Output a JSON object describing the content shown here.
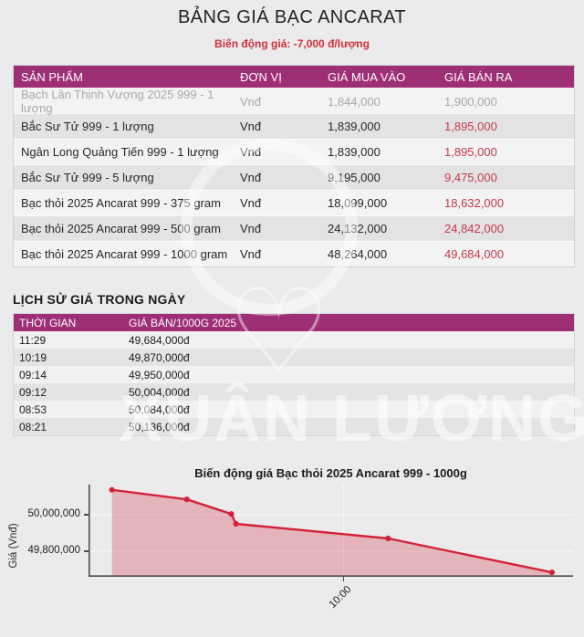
{
  "page": {
    "title": "BẢNG GIÁ BẠC ANCARAT",
    "subtitle": "Biến động giá: -7,000 đ/lượng"
  },
  "colors": {
    "accent_magenta": "#9e2e76",
    "sell_price_red": "#c0394b",
    "subtitle_red": "#d22c3a",
    "chart_line_red": "#d22339",
    "page_background": "#ecebeb"
  },
  "price_table": {
    "columns": [
      "SẢN PHẨM",
      "ĐƠN VỊ",
      "GIÁ MUA VÀO",
      "GIÁ BÁN RA"
    ],
    "rows": [
      {
        "product": "Bạch Lân Thịnh Vượng 2025 999 - 1 lượng",
        "unit": "Vnđ",
        "buy": "1,844,000",
        "sell": "1,900,000",
        "muted": true
      },
      {
        "product": "Bắc Sư Tử 999 - 1 lượng",
        "unit": "Vnđ",
        "buy": "1,839,000",
        "sell": "1,895,000",
        "muted": false
      },
      {
        "product": "Ngân Long Quảng Tiến 999 - 1 lượng",
        "unit": "Vnđ",
        "buy": "1,839,000",
        "sell": "1,895,000",
        "muted": false
      },
      {
        "product": "Bắc Sư Tử 999 - 5 lượng",
        "unit": "Vnđ",
        "buy": "9,195,000",
        "sell": "9,475,000",
        "muted": false
      },
      {
        "product": "Bạc thỏi 2025 Ancarat 999 - 375 gram",
        "unit": "Vnđ",
        "buy": "18,099,000",
        "sell": "18,632,000",
        "muted": false
      },
      {
        "product": "Bạc thỏi 2025 Ancarat 999 - 500 gram",
        "unit": "Vnđ",
        "buy": "24,132,000",
        "sell": "24,842,000",
        "muted": false
      },
      {
        "product": "Bạc thỏi 2025 Ancarat 999 - 1000 gram",
        "unit": "Vnđ",
        "buy": "48,264,000",
        "sell": "49,684,000",
        "muted": false
      }
    ]
  },
  "history": {
    "section_title": "LỊCH SỬ GIÁ TRONG NGÀY",
    "columns": [
      "THỜI GIAN",
      "GIÁ BÁN/1000G 2025"
    ],
    "rows": [
      {
        "time": "11:29",
        "price": "49,684,000đ"
      },
      {
        "time": "10:19",
        "price": "49,870,000đ"
      },
      {
        "time": "09:14",
        "price": "49,950,000đ"
      },
      {
        "time": "09:12",
        "price": "50,004,000đ"
      },
      {
        "time": "08:53",
        "price": "50,084,000đ"
      },
      {
        "time": "08:21",
        "price": "50,136,000đ"
      }
    ]
  },
  "watermark": {
    "text": "XUÂN LƯƠNG"
  },
  "chart_data": {
    "type": "area",
    "title": "Biến động giá Bạc thỏi 2025 Ancarat 999 - 1000g",
    "xlabel": "",
    "ylabel": "Giá (Vnđ)",
    "x": [
      "08:21",
      "08:53",
      "09:12",
      "09:14",
      "10:19",
      "11:29"
    ],
    "x_minutes": [
      501,
      533,
      552,
      554,
      619,
      689
    ],
    "values": [
      50136000,
      50084000,
      50004000,
      49950000,
      49870000,
      49684000
    ],
    "y_ticks": [
      {
        "label": "50,000,000",
        "value": 50000000
      },
      {
        "label": "49,800,000",
        "value": 49800000
      }
    ],
    "x_ticks": [
      {
        "label": "10:00",
        "minutes": 600
      }
    ],
    "x_range_minutes": [
      491,
      698
    ],
    "y_range": [
      49660000,
      50165000
    ],
    "grid": true,
    "legend_position": "none",
    "line_color": "#d22339",
    "fill_color": "rgba(210,35,57,0.27)"
  }
}
